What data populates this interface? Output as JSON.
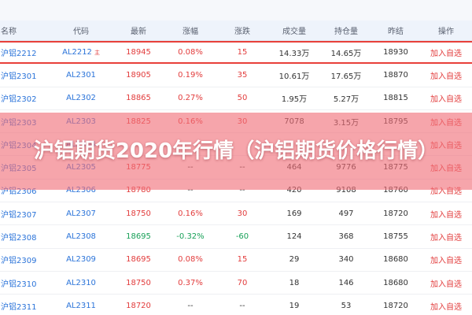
{
  "header": {
    "columns": [
      "名称",
      "代码",
      "最新",
      "涨幅",
      "涨跌",
      "成交量",
      "持仓量",
      "昨结",
      "操作"
    ]
  },
  "rows": [
    {
      "name": "沪铝2212",
      "code": "AL2212",
      "tag": "主",
      "last": "18945",
      "pct": "0.08%",
      "chg": "15",
      "volume": "14.33万",
      "oi": "14.65万",
      "prev": "18930",
      "action": "加入自选"
    },
    {
      "name": "沪铝2301",
      "code": "AL2301",
      "tag": "",
      "last": "18905",
      "pct": "0.19%",
      "chg": "35",
      "volume": "10.61万",
      "oi": "17.65万",
      "prev": "18870",
      "action": "加入自选"
    },
    {
      "name": "沪铝2302",
      "code": "AL2302",
      "tag": "",
      "last": "18865",
      "pct": "0.27%",
      "chg": "50",
      "volume": "1.95万",
      "oi": "5.27万",
      "prev": "18815",
      "action": "加入自选"
    },
    {
      "name": "沪铝2303",
      "code": "AL2303",
      "tag": "",
      "last": "18825",
      "pct": "0.16%",
      "chg": "30",
      "volume": "7078",
      "oi": "3.15万",
      "prev": "18795",
      "action": "加入自选"
    },
    {
      "name": "沪铝2304",
      "code": "AL2304",
      "tag": "",
      "last": "",
      "pct": "",
      "chg": "",
      "volume": "",
      "oi": "",
      "prev": "",
      "action": "加入自选"
    },
    {
      "name": "沪铝2305",
      "code": "AL2305",
      "tag": "",
      "last": "18775",
      "pct": "--",
      "chg": "--",
      "volume": "464",
      "oi": "9776",
      "prev": "18775",
      "action": "加入自选"
    },
    {
      "name": "沪铝2306",
      "code": "AL2306",
      "tag": "",
      "last": "18780",
      "pct": "--",
      "chg": "--",
      "volume": "420",
      "oi": "9108",
      "prev": "18760",
      "action": "加入自选"
    },
    {
      "name": "沪铝2307",
      "code": "AL2307",
      "tag": "",
      "last": "18750",
      "pct": "0.16%",
      "chg": "30",
      "volume": "169",
      "oi": "497",
      "prev": "18720",
      "action": "加入自选"
    },
    {
      "name": "沪铝2308",
      "code": "AL2308",
      "tag": "",
      "last": "18695",
      "pct": "-0.32%",
      "chg": "-60",
      "volume": "124",
      "oi": "368",
      "prev": "18755",
      "action": "加入自选"
    },
    {
      "name": "沪铝2309",
      "code": "AL2309",
      "tag": "",
      "last": "18695",
      "pct": "0.08%",
      "chg": "15",
      "volume": "29",
      "oi": "340",
      "prev": "18680",
      "action": "加入自选"
    },
    {
      "name": "沪铝2310",
      "code": "AL2310",
      "tag": "",
      "last": "18750",
      "pct": "0.37%",
      "chg": "70",
      "volume": "18",
      "oi": "146",
      "prev": "18680",
      "action": "加入自选"
    },
    {
      "name": "沪铝2311",
      "code": "AL2311",
      "tag": "",
      "last": "18720",
      "pct": "--",
      "chg": "--",
      "volume": "19",
      "oi": "53",
      "prev": "18720",
      "action": "加入自选"
    }
  ],
  "overlay": {
    "title": "沪铝期货2020年行情（沪铝期货价格行情）"
  },
  "colors": {
    "up": "#e23c3c",
    "down": "#18a058",
    "link": "#2a73d9",
    "overlay": "#f06e78"
  }
}
